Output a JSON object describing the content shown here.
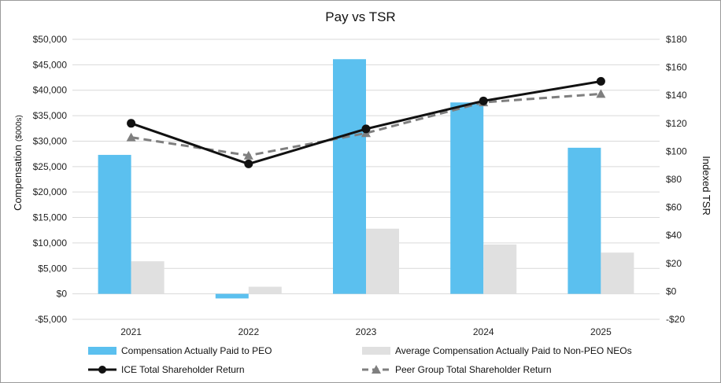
{
  "chart_data": {
    "type": "bar",
    "title": "Pay vs TSR",
    "categories": [
      "2021",
      "2022",
      "2023",
      "2024",
      "2025"
    ],
    "ylabel": "Compensation",
    "ylabel_unit": "($000s)",
    "y2label": "Indexed TSR",
    "ylim": [
      -5000,
      50000
    ],
    "yticks": [
      -5000,
      0,
      5000,
      10000,
      15000,
      20000,
      25000,
      30000,
      35000,
      40000,
      45000,
      50000
    ],
    "ytick_labels": [
      "-$5,000",
      "$0",
      "$5,000",
      "$10,000",
      "$15,000",
      "$20,000",
      "$25,000",
      "$30,000",
      "$35,000",
      "$40,000",
      "$45,000",
      "$50,000"
    ],
    "y2lim": [
      -20,
      180
    ],
    "y2ticks": [
      -20,
      0,
      20,
      40,
      60,
      80,
      100,
      120,
      140,
      160,
      180
    ],
    "y2tick_labels": [
      "-$20",
      "$0",
      "$20",
      "$40",
      "$60",
      "$80",
      "$100",
      "$120",
      "$140",
      "$160",
      "$180"
    ],
    "bar_series": [
      {
        "name": "Compensation Actually Paid to PEO",
        "color": "#5bc0ef",
        "values": [
          27300,
          -900,
          46100,
          37600,
          28700
        ]
      },
      {
        "name": "Average Compensation Actually Paid to Non-PEO NEOs",
        "color": "#e0e0e0",
        "values": [
          6400,
          1400,
          12800,
          9700,
          8100
        ]
      }
    ],
    "line_series": [
      {
        "name": "ICE Total Shareholder Return",
        "color": "#111111",
        "style": "solid",
        "marker": "circle",
        "values": [
          120,
          91,
          116,
          136,
          150
        ]
      },
      {
        "name": "Peer Group Total Shareholder Return",
        "color": "#7f7f7f",
        "style": "dashed",
        "marker": "triangle",
        "values": [
          110,
          97,
          113,
          135,
          141
        ]
      }
    ],
    "legend_position": "bottom"
  }
}
